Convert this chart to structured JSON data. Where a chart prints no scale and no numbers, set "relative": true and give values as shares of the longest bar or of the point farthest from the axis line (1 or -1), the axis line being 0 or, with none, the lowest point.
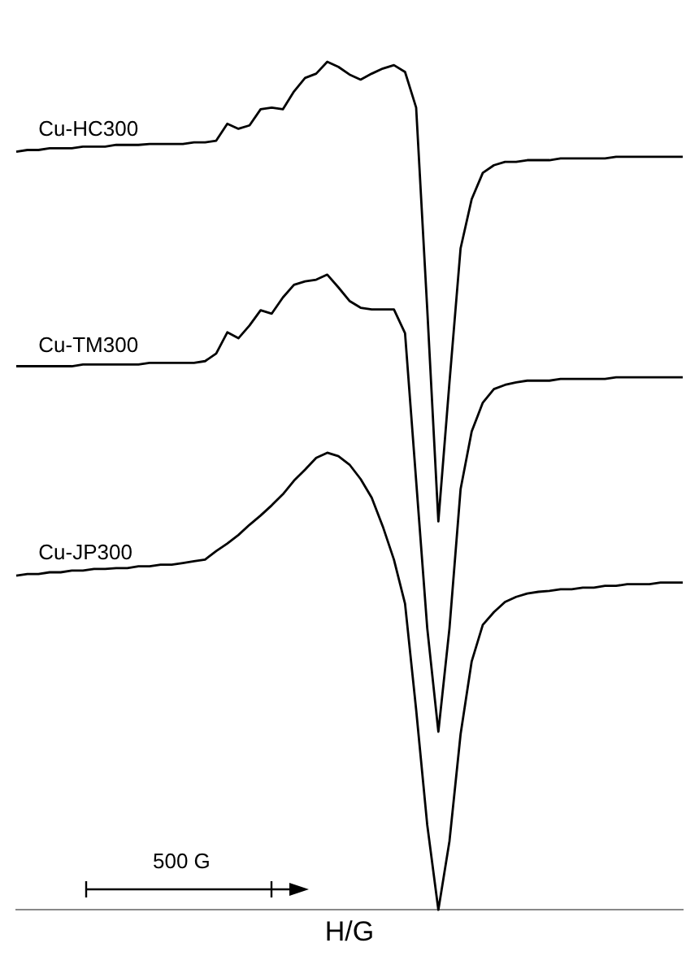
{
  "chart_data": {
    "type": "line",
    "relative": true,
    "xlabel": "H/G",
    "tick_labels": false,
    "marker": "none",
    "annotations": [
      "500 G"
    ],
    "categories": [
      null,
      null,
      null,
      null,
      null,
      null,
      null,
      null,
      null,
      null,
      null,
      null,
      null,
      null,
      null,
      null,
      null,
      null,
      null,
      null,
      null,
      null,
      null,
      null,
      null,
      null,
      null,
      null,
      null,
      null,
      null,
      null,
      null,
      null,
      null,
      null,
      null,
      null,
      null,
      null,
      null,
      null,
      null,
      null,
      null,
      null,
      null,
      null,
      null,
      null,
      null,
      null,
      null,
      null,
      null,
      null,
      null,
      null,
      null,
      null,
      null
    ],
    "series": [
      {
        "name": "Cu-HC300",
        "color": "#000000",
        "values": [
          0.894,
          0.896,
          0.896,
          0.898,
          0.898,
          0.898,
          0.9,
          0.9,
          0.9,
          0.902,
          0.902,
          0.902,
          0.903,
          0.903,
          0.903,
          0.903,
          0.905,
          0.905,
          0.907,
          0.927,
          0.921,
          0.925,
          0.944,
          0.946,
          0.944,
          0.965,
          0.981,
          0.986,
          1,
          0.994,
          0.985,
          0.979,
          0.986,
          0.992,
          0.996,
          0.988,
          0.946,
          0.708,
          0.458,
          0.622,
          0.78,
          0.838,
          0.869,
          0.878,
          0.882,
          0.882,
          0.884,
          0.884,
          0.884,
          0.886,
          0.886,
          0.886,
          0.886,
          0.886,
          0.888,
          0.888,
          0.888,
          0.888,
          0.888,
          0.888,
          0.888
        ]
      },
      {
        "name": "Cu-TM300",
        "color": "#000000",
        "values": [
          0.641,
          0.641,
          0.641,
          0.641,
          0.641,
          0.641,
          0.643,
          0.643,
          0.643,
          0.643,
          0.643,
          0.643,
          0.645,
          0.645,
          0.645,
          0.645,
          0.645,
          0.647,
          0.656,
          0.681,
          0.674,
          0.689,
          0.707,
          0.703,
          0.722,
          0.737,
          0.741,
          0.743,
          0.749,
          0.734,
          0.718,
          0.71,
          0.708,
          0.708,
          0.708,
          0.68,
          0.506,
          0.332,
          0.21,
          0.332,
          0.496,
          0.564,
          0.598,
          0.614,
          0.619,
          0.622,
          0.624,
          0.624,
          0.624,
          0.626,
          0.626,
          0.626,
          0.626,
          0.626,
          0.628,
          0.628,
          0.628,
          0.628,
          0.628,
          0.628,
          0.628
        ]
      },
      {
        "name": "Cu-JP300",
        "color": "#000000",
        "values": [
          0.394,
          0.396,
          0.396,
          0.398,
          0.398,
          0.4,
          0.4,
          0.402,
          0.402,
          0.403,
          0.403,
          0.405,
          0.405,
          0.407,
          0.407,
          0.409,
          0.411,
          0.413,
          0.423,
          0.432,
          0.442,
          0.454,
          0.465,
          0.477,
          0.49,
          0.506,
          0.519,
          0.533,
          0.539,
          0.535,
          0.525,
          0.508,
          0.486,
          0.452,
          0.413,
          0.361,
          0.236,
          0.1,
          0,
          0.081,
          0.207,
          0.293,
          0.336,
          0.351,
          0.363,
          0.369,
          0.373,
          0.375,
          0.376,
          0.378,
          0.378,
          0.38,
          0.38,
          0.382,
          0.382,
          0.384,
          0.384,
          0.384,
          0.386,
          0.386,
          0.386
        ]
      }
    ]
  }
}
